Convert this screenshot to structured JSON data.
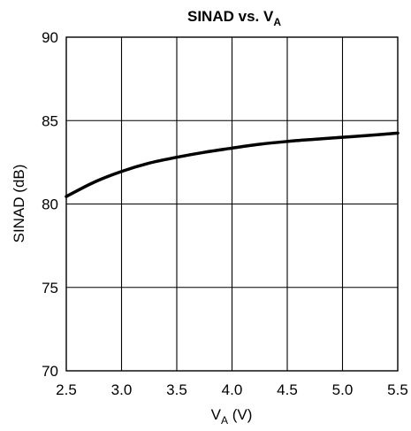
{
  "chart_data": {
    "type": "line",
    "title": {
      "main": "SINAD vs. V",
      "sub": "A"
    },
    "xlabel": {
      "main": "V",
      "sub": "A",
      "suffix": " (V)"
    },
    "ylabel": "SINAD (dB)",
    "xlim": [
      2.5,
      5.5
    ],
    "ylim": [
      70,
      90
    ],
    "x_ticks": [
      2.5,
      3.0,
      3.5,
      4.0,
      4.5,
      5.0,
      5.5
    ],
    "y_ticks": [
      70,
      75,
      80,
      85,
      90
    ],
    "x_tick_labels": [
      "2.5",
      "3.0",
      "3.5",
      "4.0",
      "4.5",
      "5.0",
      "5.5"
    ],
    "y_tick_labels": [
      "70",
      "75",
      "80",
      "85",
      "90"
    ],
    "grid": true,
    "series": [
      {
        "x": [
          2.5,
          2.75,
          3.0,
          3.25,
          3.5,
          3.75,
          4.0,
          4.25,
          4.5,
          4.75,
          5.0,
          5.25,
          5.5
        ],
        "y": [
          80.45,
          81.3,
          81.95,
          82.45,
          82.8,
          83.1,
          83.35,
          83.58,
          83.75,
          83.88,
          84.0,
          84.12,
          84.25
        ]
      }
    ]
  }
}
